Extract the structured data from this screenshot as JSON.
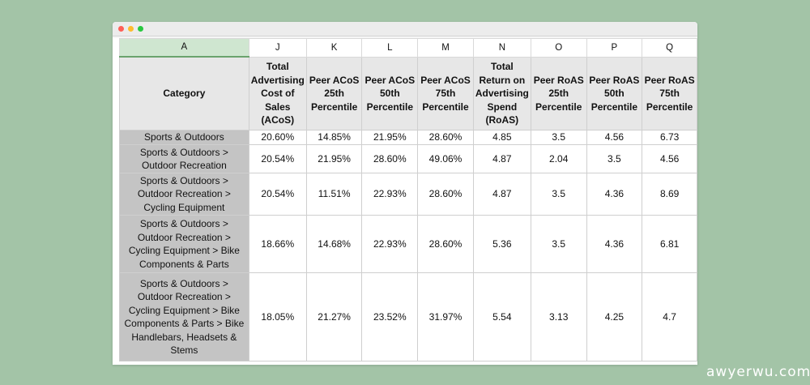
{
  "columns": {
    "letters": [
      "A",
      "J",
      "K",
      "L",
      "M",
      "N",
      "O",
      "P",
      "Q"
    ],
    "headers": [
      "Category",
      "Total Advertising Cost of Sales (ACoS)",
      "Peer ACoS 25th Percentile",
      "Peer ACoS 50th Percentile",
      "Peer ACoS 75th Percentile",
      "Total Return on Advertising Spend (RoAS)",
      "Peer RoAS 25th Percentile",
      "Peer RoAS 50th Percentile",
      "Peer RoAS 75th Percentile"
    ]
  },
  "rows": [
    [
      "Sports & Outdoors",
      "20.60%",
      "14.85%",
      "21.95%",
      "28.60%",
      "4.85",
      "3.5",
      "4.56",
      "6.73"
    ],
    [
      "Sports & Outdoors > Outdoor Recreation",
      "20.54%",
      "21.95%",
      "28.60%",
      "49.06%",
      "4.87",
      "2.04",
      "3.5",
      "4.56"
    ],
    [
      "Sports & Outdoors > Outdoor Recreation > Cycling Equipment",
      "20.54%",
      "11.51%",
      "22.93%",
      "28.60%",
      "4.87",
      "3.5",
      "4.36",
      "8.69"
    ],
    [
      "Sports & Outdoors > Outdoor Recreation > Cycling Equipment > Bike Components & Parts",
      "18.66%",
      "14.68%",
      "22.93%",
      "28.60%",
      "5.36",
      "3.5",
      "4.36",
      "6.81"
    ],
    [
      "Sports & Outdoors > Outdoor Recreation > Cycling Equipment > Bike Components & Parts > Bike Handlebars, Headsets & Stems",
      "18.05%",
      "21.27%",
      "23.52%",
      "31.97%",
      "5.54",
      "3.13",
      "4.25",
      "4.7"
    ]
  ],
  "watermark": "awyerwu.com",
  "colors": {
    "background": "#a3c4a7",
    "category_fill": "#c4c4c4",
    "header_fill": "#e7e7e7",
    "selected_column": "#cfe6d0"
  }
}
